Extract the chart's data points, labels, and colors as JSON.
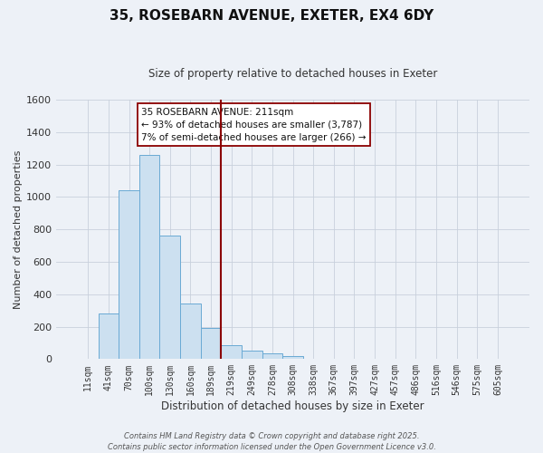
{
  "title": "35, ROSEBARN AVENUE, EXETER, EX4 6DY",
  "subtitle": "Size of property relative to detached houses in Exeter",
  "xlabel": "Distribution of detached houses by size in Exeter",
  "ylabel": "Number of detached properties",
  "bar_labels": [
    "11sqm",
    "41sqm",
    "70sqm",
    "100sqm",
    "130sqm",
    "160sqm",
    "189sqm",
    "219sqm",
    "249sqm",
    "278sqm",
    "308sqm",
    "338sqm",
    "367sqm",
    "397sqm",
    "427sqm",
    "457sqm",
    "486sqm",
    "516sqm",
    "546sqm",
    "575sqm",
    "605sqm"
  ],
  "bar_values": [
    0,
    280,
    1040,
    1260,
    760,
    340,
    190,
    85,
    52,
    38,
    20,
    0,
    0,
    0,
    0,
    0,
    0,
    0,
    0,
    0,
    0
  ],
  "bar_color": "#cce0f0",
  "bar_edge_color": "#6aaad4",
  "grid_color": "#c8d0dc",
  "background_color": "#edf1f7",
  "vline_color": "#8b0000",
  "annotation_title": "35 ROSEBARN AVENUE: 211sqm",
  "annotation_line1": "← 93% of detached houses are smaller (3,787)",
  "annotation_line2": "7% of semi-detached houses are larger (266) →",
  "annotation_box_edge": "#8b0000",
  "ylim": [
    0,
    1600
  ],
  "yticks": [
    0,
    200,
    400,
    600,
    800,
    1000,
    1200,
    1400,
    1600
  ],
  "footnote1": "Contains HM Land Registry data © Crown copyright and database right 2025.",
  "footnote2": "Contains public sector information licensed under the Open Government Licence v3.0."
}
